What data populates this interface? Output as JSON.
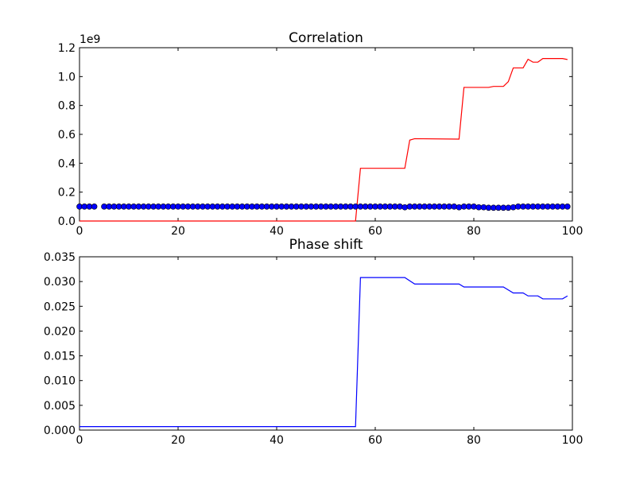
{
  "chart_data": [
    {
      "type": "line",
      "title": "Correlation",
      "offset_label": "1e9",
      "xlabel": "",
      "ylabel": "",
      "xlim": [
        0,
        100
      ],
      "ylim": [
        0,
        1.2
      ],
      "x_ticks": [
        0,
        20,
        40,
        60,
        80,
        100
      ],
      "x_tick_labels": [
        "0",
        "20",
        "40",
        "60",
        "80",
        "100"
      ],
      "y_ticks": [
        0,
        0.2,
        0.4,
        0.6,
        0.8,
        1.0,
        1.2
      ],
      "y_tick_labels": [
        "0.0",
        "0.2",
        "0.4",
        "0.6",
        "0.8",
        "1.0",
        "1.2"
      ],
      "grid": false,
      "legend": "none",
      "series": [
        {
          "style": "line",
          "color": "#ff0000",
          "x": [
            0,
            56,
            57,
            66,
            67,
            68,
            77,
            78,
            83,
            84,
            86,
            87,
            88,
            90,
            91,
            92,
            93,
            94,
            98,
            99
          ],
          "values": [
            0.0,
            0.0,
            0.365,
            0.365,
            0.56,
            0.57,
            0.567,
            0.925,
            0.925,
            0.932,
            0.932,
            0.965,
            1.06,
            1.06,
            1.12,
            1.1,
            1.1,
            1.125,
            1.125,
            1.118
          ]
        },
        {
          "style": "markers",
          "color": "#0000ff",
          "x": [
            0,
            1,
            2,
            3,
            5,
            6,
            7,
            8,
            9,
            10,
            11,
            12,
            13,
            14,
            15,
            16,
            17,
            18,
            19,
            20,
            21,
            22,
            23,
            24,
            25,
            26,
            27,
            28,
            29,
            30,
            31,
            32,
            33,
            34,
            35,
            36,
            37,
            38,
            39,
            40,
            41,
            42,
            43,
            44,
            45,
            46,
            47,
            48,
            49,
            50,
            51,
            52,
            53,
            54,
            55,
            56,
            57,
            58,
            59,
            60,
            61,
            62,
            63,
            64,
            65,
            66,
            67,
            68,
            69,
            70,
            71,
            72,
            73,
            74,
            75,
            76,
            77,
            78,
            79,
            80,
            81,
            82,
            83,
            84,
            85,
            86,
            87,
            88,
            89,
            90,
            91,
            92,
            93,
            94,
            95,
            96,
            97,
            98,
            99
          ],
          "values": [
            0.1,
            0.1,
            0.1,
            0.1,
            0.1,
            0.1,
            0.1,
            0.1,
            0.1,
            0.1,
            0.1,
            0.1,
            0.1,
            0.1,
            0.1,
            0.1,
            0.1,
            0.1,
            0.1,
            0.1,
            0.1,
            0.1,
            0.1,
            0.1,
            0.1,
            0.1,
            0.1,
            0.1,
            0.1,
            0.1,
            0.1,
            0.1,
            0.1,
            0.1,
            0.1,
            0.1,
            0.1,
            0.1,
            0.1,
            0.1,
            0.1,
            0.1,
            0.1,
            0.1,
            0.1,
            0.1,
            0.1,
            0.1,
            0.1,
            0.1,
            0.1,
            0.1,
            0.1,
            0.1,
            0.1,
            0.1,
            0.1,
            0.1,
            0.1,
            0.1,
            0.1,
            0.1,
            0.1,
            0.1,
            0.1,
            0.095,
            0.1,
            0.1,
            0.1,
            0.1,
            0.1,
            0.1,
            0.1,
            0.1,
            0.1,
            0.1,
            0.095,
            0.1,
            0.1,
            0.1,
            0.095,
            0.095,
            0.092,
            0.092,
            0.092,
            0.092,
            0.092,
            0.095,
            0.1,
            0.1,
            0.1,
            0.1,
            0.1,
            0.1,
            0.1,
            0.1,
            0.1,
            0.1,
            0.1
          ]
        }
      ]
    },
    {
      "type": "line",
      "title": "Phase shift",
      "xlabel": "",
      "ylabel": "",
      "xlim": [
        0,
        100
      ],
      "ylim": [
        0,
        0.035
      ],
      "x_ticks": [
        0,
        20,
        40,
        60,
        80,
        100
      ],
      "x_tick_labels": [
        "0",
        "20",
        "40",
        "60",
        "80",
        "100"
      ],
      "y_ticks": [
        0,
        0.005,
        0.01,
        0.015,
        0.02,
        0.025,
        0.03,
        0.035
      ],
      "y_tick_labels": [
        "0.000",
        "0.005",
        "0.010",
        "0.015",
        "0.020",
        "0.025",
        "0.030",
        "0.035"
      ],
      "grid": false,
      "legend": "none",
      "series": [
        {
          "style": "line",
          "color": "#0000ff",
          "x": [
            0,
            56,
            57,
            66,
            68,
            77,
            78,
            86,
            88,
            90,
            91,
            93,
            94,
            98,
            99
          ],
          "values": [
            0.0007,
            0.0007,
            0.0308,
            0.0308,
            0.0295,
            0.0295,
            0.0289,
            0.0289,
            0.0277,
            0.0277,
            0.0271,
            0.0271,
            0.0265,
            0.0265,
            0.0271
          ]
        }
      ]
    }
  ]
}
